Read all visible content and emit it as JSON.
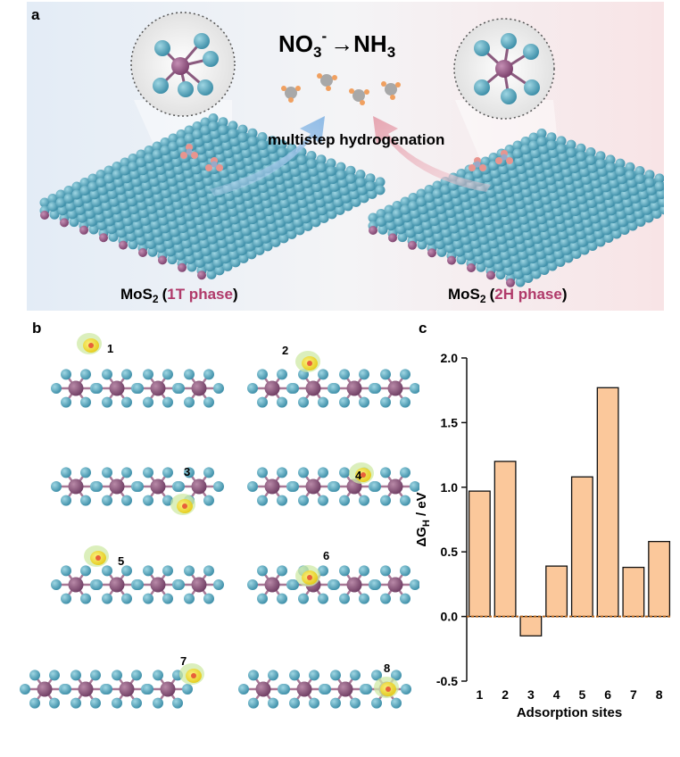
{
  "panel_a": {
    "label": "a",
    "reaction": {
      "reactant": "NO",
      "reactant_sub": "3",
      "reactant_sup": "-",
      "arrow": "→",
      "product": "NH",
      "product_sub": "3"
    },
    "process": "multistep hydrogenation",
    "left": {
      "formula": "MoS",
      "sub": "2",
      "open": "(",
      "phase": "1T phase",
      "close": ")",
      "phase_color": "#b03a6a"
    },
    "right": {
      "formula": "MoS",
      "sub": "2",
      "open": "(",
      "phase": "2H phase",
      "close": ")",
      "phase_color": "#b03a6a"
    }
  },
  "panel_b": {
    "label": "b",
    "sites": [
      "1",
      "2",
      "3",
      "4",
      "5",
      "6",
      "7",
      "8"
    ]
  },
  "panel_c": {
    "label": "c"
  },
  "chart_data": {
    "type": "bar",
    "categories": [
      "1",
      "2",
      "3",
      "4",
      "5",
      "6",
      "7",
      "8"
    ],
    "values": [
      0.97,
      1.2,
      -0.15,
      0.39,
      1.08,
      1.77,
      0.38,
      0.58
    ],
    "xlabel": "Adsorption sites",
    "ylabel_prefix": "ΔG",
    "ylabel_sub": "H",
    "ylabel_suffix": " / eV",
    "ylim": [
      -0.5,
      2.0
    ],
    "yticks": [
      -0.5,
      0.0,
      0.5,
      1.0,
      1.5,
      2.0
    ],
    "ytick_labels": [
      "-0.5",
      "0.0",
      "0.5",
      "1.0",
      "1.5",
      "2.0"
    ],
    "bar_color": "#fbc89b",
    "bar_edge": "#111111",
    "zero_line_color": "#b5651d",
    "grid": false
  }
}
